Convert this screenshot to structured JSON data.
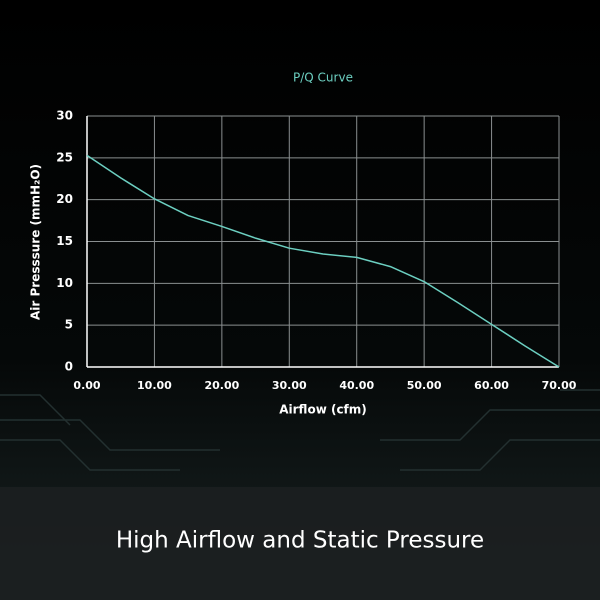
{
  "chart_data": {
    "type": "line",
    "title": "P/Q Curve",
    "x_label": "Airflow (cfm)",
    "y_label": "Air Presssure (mmH₂O)",
    "x": [
      0,
      5,
      10,
      15,
      20,
      25,
      30,
      35,
      40,
      45,
      50,
      55,
      60,
      65,
      70
    ],
    "values": [
      25.3,
      22.6,
      20.1,
      18.1,
      16.8,
      15.4,
      14.2,
      13.5,
      13.1,
      12.0,
      10.2,
      7.7,
      5.1,
      2.5,
      0
    ],
    "color": "#6ccfc1",
    "xlim": [
      0,
      70
    ],
    "xticks": [
      {
        "value": 0,
        "label": "0.00"
      },
      {
        "value": 10,
        "label": "10.00"
      },
      {
        "value": 20,
        "label": "20.00"
      },
      {
        "value": 30,
        "label": "30.00"
      },
      {
        "value": 40,
        "label": "40.00"
      },
      {
        "value": 50,
        "label": "50.00"
      },
      {
        "value": 60,
        "label": "60.00"
      },
      {
        "value": 70,
        "label": "70.00"
      }
    ],
    "ylim": [
      0,
      30
    ],
    "yticks": [
      0,
      5,
      10,
      15,
      20,
      25,
      30
    ],
    "grid": true
  },
  "caption": "High Airflow and Static Pressure"
}
